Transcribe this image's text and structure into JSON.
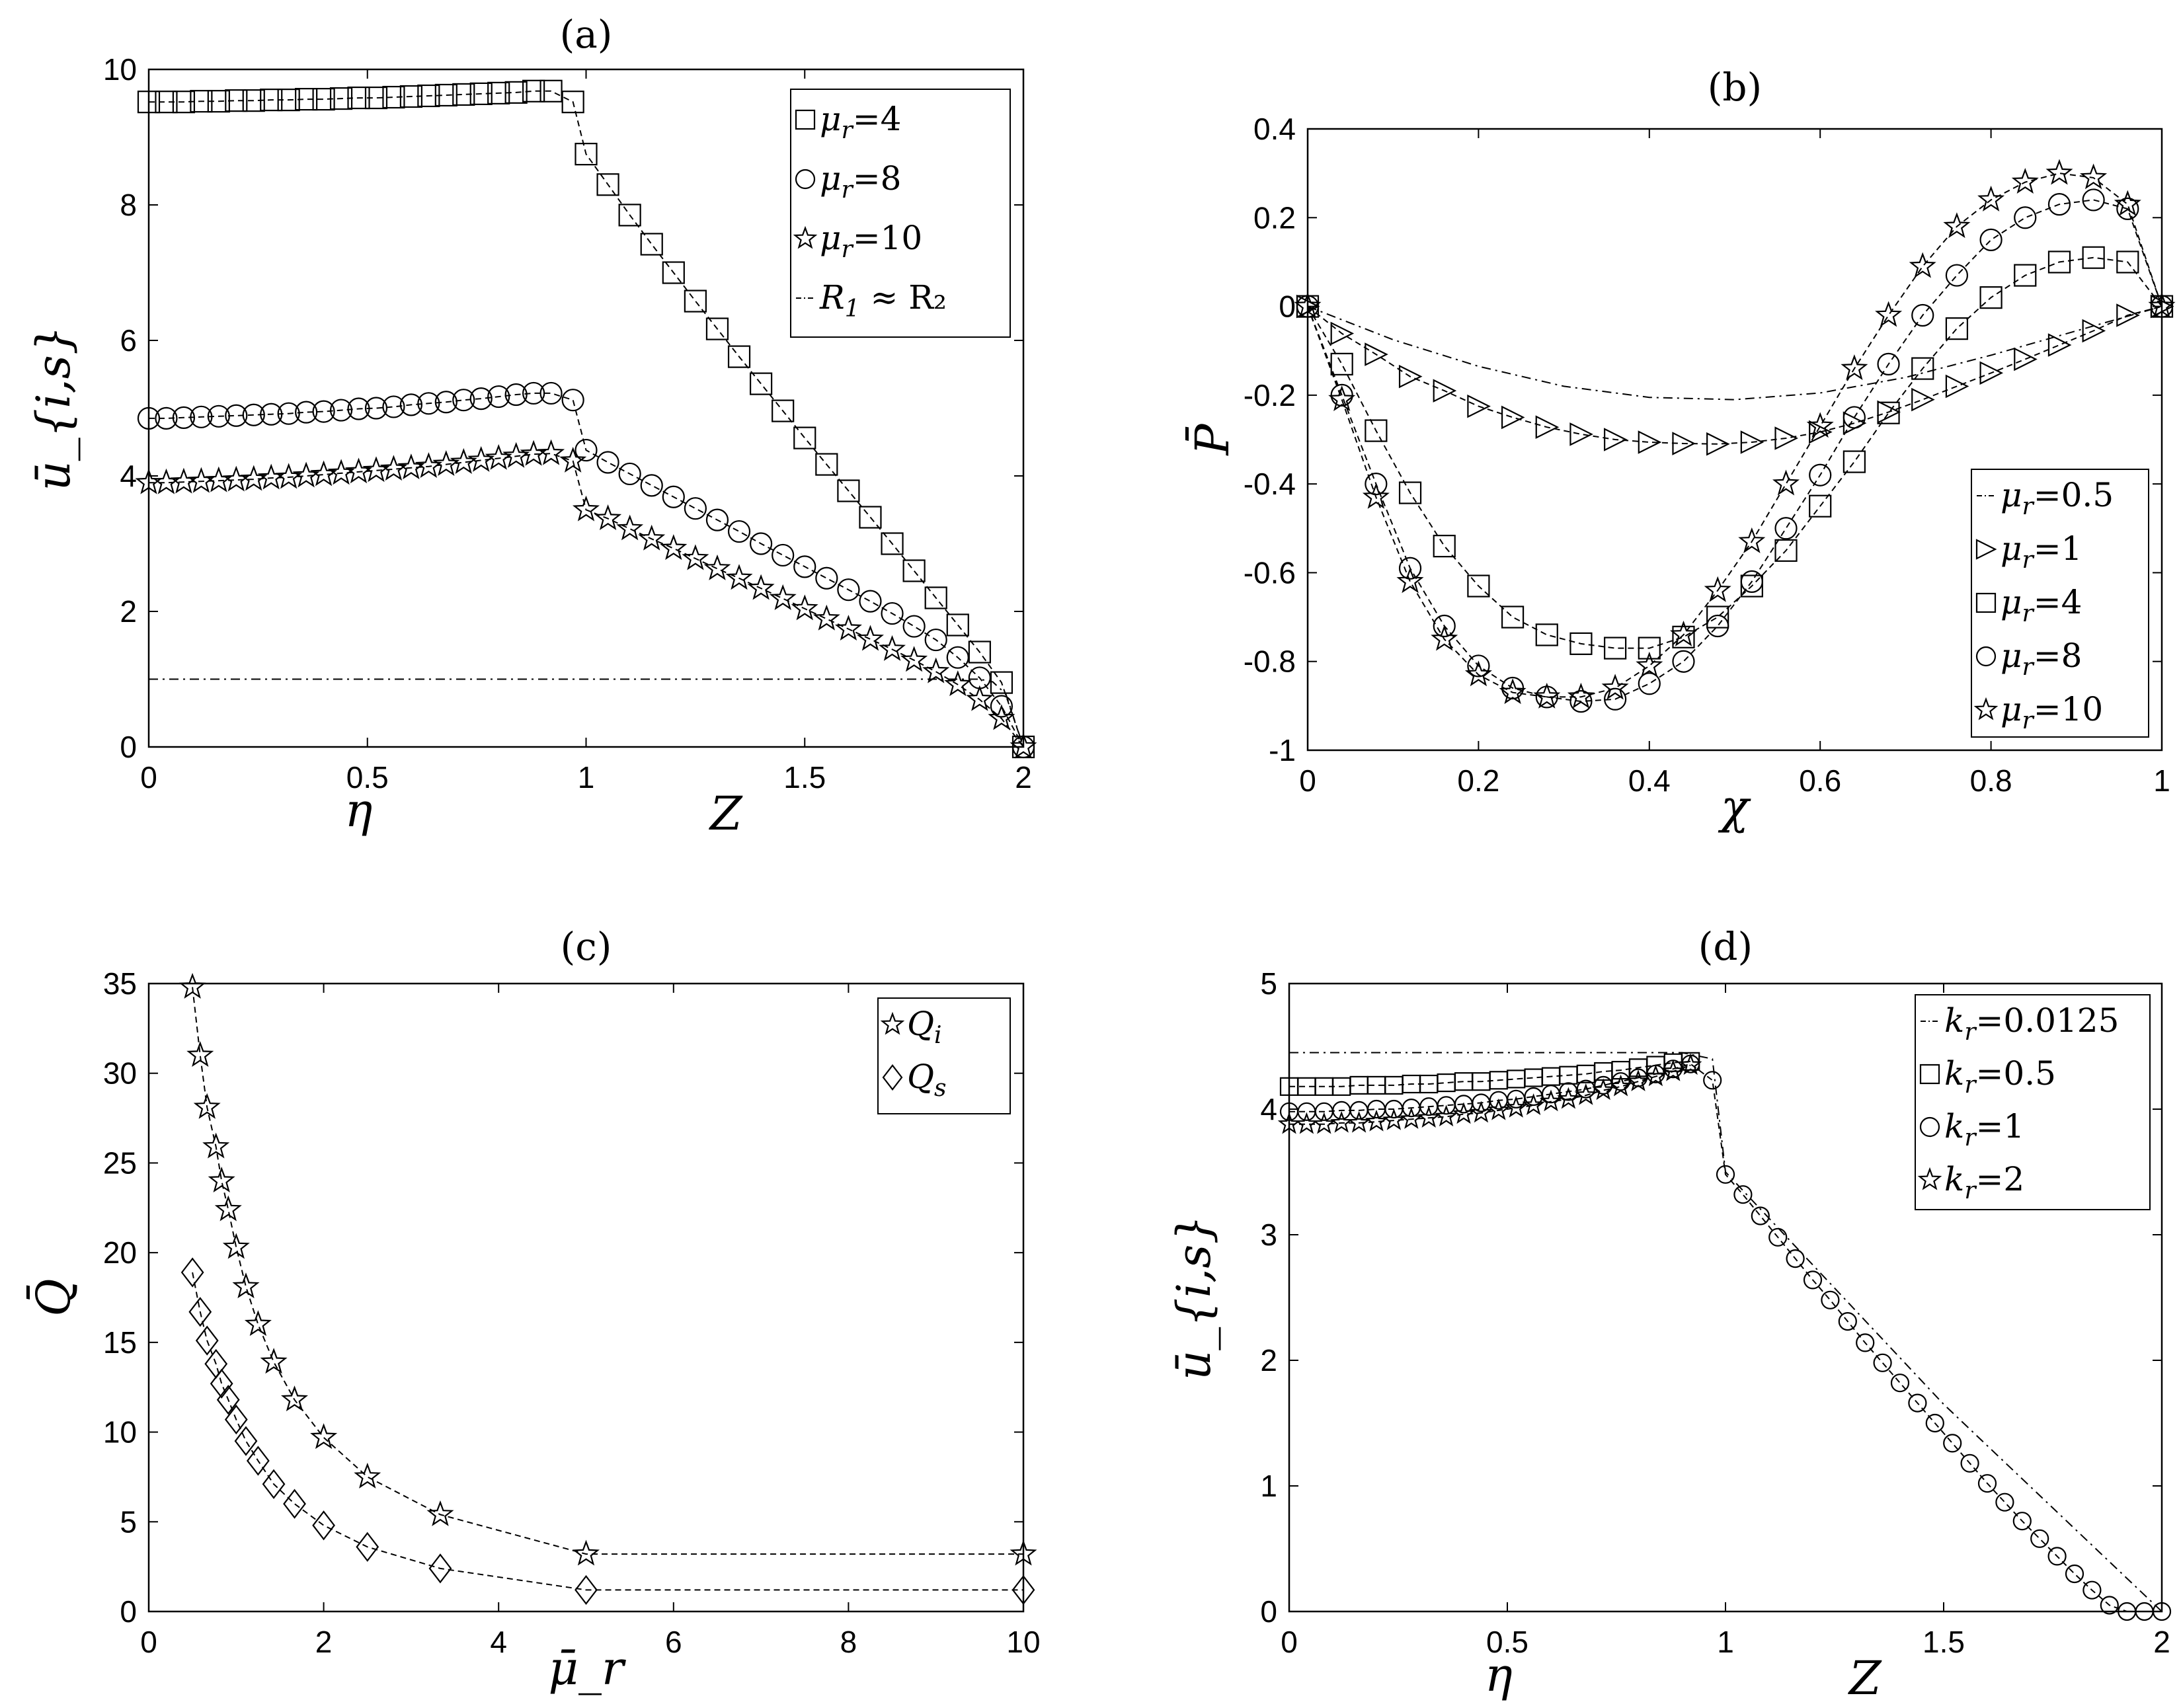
{
  "chart_data": [
    {
      "id": "a",
      "type": "line",
      "title": "(a)",
      "ylabel": "ū_{i,s}",
      "xlabel_parts": [
        "η",
        "Z"
      ],
      "xlim": [
        0,
        2
      ],
      "ylim": [
        0,
        10
      ],
      "xticks": [
        "0",
        "0.5",
        "1",
        "1.5",
        "2"
      ],
      "yticks": [
        "0",
        "2",
        "4",
        "6",
        "8",
        "10"
      ],
      "legend_position": "top-right",
      "series": [
        {
          "name": "μ_r=4",
          "legend_sym": "μ",
          "legend_sub": "r",
          "legend_val": "=4",
          "marker": "square",
          "x": [
            0,
            0.04,
            0.08,
            0.12,
            0.16,
            0.2,
            0.24,
            0.28,
            0.32,
            0.36,
            0.4,
            0.44,
            0.48,
            0.52,
            0.56,
            0.6,
            0.64,
            0.68,
            0.72,
            0.76,
            0.8,
            0.84,
            0.88,
            0.92,
            0.97,
            1.0,
            1.05,
            1.1,
            1.15,
            1.2,
            1.25,
            1.3,
            1.35,
            1.4,
            1.45,
            1.5,
            1.55,
            1.6,
            1.65,
            1.7,
            1.75,
            1.8,
            1.85,
            1.9,
            1.95,
            2.0
          ],
          "y": [
            9.52,
            9.52,
            9.52,
            9.53,
            9.53,
            9.54,
            9.54,
            9.55,
            9.55,
            9.56,
            9.56,
            9.57,
            9.58,
            9.58,
            9.59,
            9.6,
            9.61,
            9.62,
            9.63,
            9.64,
            9.65,
            9.66,
            9.68,
            9.68,
            9.52,
            8.75,
            8.3,
            7.85,
            7.42,
            7.0,
            6.58,
            6.17,
            5.76,
            5.36,
            4.96,
            4.56,
            4.17,
            3.78,
            3.39,
            3.0,
            2.6,
            2.2,
            1.8,
            1.4,
            0.95,
            0.0
          ]
        },
        {
          "name": "μ_r=8",
          "legend_sym": "μ",
          "legend_sub": "r",
          "legend_val": "=8",
          "marker": "circle",
          "x": [
            0,
            0.04,
            0.08,
            0.12,
            0.16,
            0.2,
            0.24,
            0.28,
            0.32,
            0.36,
            0.4,
            0.44,
            0.48,
            0.52,
            0.56,
            0.6,
            0.64,
            0.68,
            0.72,
            0.76,
            0.8,
            0.84,
            0.88,
            0.92,
            0.97,
            1.0,
            1.05,
            1.1,
            1.15,
            1.2,
            1.25,
            1.3,
            1.35,
            1.4,
            1.45,
            1.5,
            1.55,
            1.6,
            1.65,
            1.7,
            1.75,
            1.8,
            1.85,
            1.9,
            1.95,
            2.0
          ],
          "y": [
            4.85,
            4.85,
            4.86,
            4.87,
            4.88,
            4.89,
            4.9,
            4.91,
            4.92,
            4.94,
            4.95,
            4.97,
            4.99,
            5.0,
            5.02,
            5.05,
            5.07,
            5.09,
            5.12,
            5.14,
            5.17,
            5.2,
            5.22,
            5.22,
            5.12,
            4.38,
            4.2,
            4.03,
            3.86,
            3.69,
            3.52,
            3.35,
            3.18,
            3.0,
            2.83,
            2.66,
            2.49,
            2.32,
            2.15,
            1.97,
            1.78,
            1.58,
            1.32,
            1.02,
            0.6,
            0.0
          ]
        },
        {
          "name": "μ_r=10",
          "legend_sym": "μ",
          "legend_sub": "r",
          "legend_val": "=10",
          "marker": "star",
          "x": [
            0,
            0.04,
            0.08,
            0.12,
            0.16,
            0.2,
            0.24,
            0.28,
            0.32,
            0.36,
            0.4,
            0.44,
            0.48,
            0.52,
            0.56,
            0.6,
            0.64,
            0.68,
            0.72,
            0.76,
            0.8,
            0.84,
            0.88,
            0.92,
            0.97,
            1.0,
            1.05,
            1.1,
            1.15,
            1.2,
            1.25,
            1.3,
            1.35,
            1.4,
            1.45,
            1.5,
            1.55,
            1.6,
            1.65,
            1.7,
            1.75,
            1.8,
            1.85,
            1.9,
            1.95,
            2.0
          ],
          "y": [
            3.9,
            3.9,
            3.91,
            3.92,
            3.93,
            3.94,
            3.95,
            3.97,
            3.98,
            4.0,
            4.02,
            4.04,
            4.06,
            4.08,
            4.1,
            4.12,
            4.14,
            4.17,
            4.2,
            4.23,
            4.26,
            4.29,
            4.32,
            4.33,
            4.22,
            3.5,
            3.37,
            3.22,
            3.07,
            2.93,
            2.78,
            2.63,
            2.49,
            2.34,
            2.19,
            2.04,
            1.89,
            1.74,
            1.59,
            1.44,
            1.28,
            1.11,
            0.92,
            0.7,
            0.42,
            0.0
          ]
        },
        {
          "name": "R_1 ≈ R_2",
          "legend_sym": "R",
          "legend_sub": "1",
          "legend_val": " ≈ R₂",
          "marker": "dashdot",
          "x": [
            0,
            0.5,
            1.0,
            1.5,
            1.9,
            1.93,
            1.96,
            2.0
          ],
          "y": [
            1.0,
            1.0,
            1.0,
            1.0,
            1.0,
            0.96,
            0.78,
            0.0
          ]
        }
      ]
    },
    {
      "id": "b",
      "type": "line",
      "title": "(b)",
      "ylabel": "P̄",
      "xlabel": "χ",
      "xlim": [
        0,
        1
      ],
      "ylim": [
        -1,
        0.4
      ],
      "xticks": [
        "0",
        "0.2",
        "0.4",
        "0.6",
        "0.8",
        "1"
      ],
      "yticks": [
        "-1",
        "-0.8",
        "-0.6",
        "-0.4",
        "-0.2",
        "0",
        "0.2",
        "0.4"
      ],
      "legend_position": "bottom-right",
      "series": [
        {
          "name": "μ_r=0.5",
          "legend_sym": "μ",
          "legend_sub": "r",
          "legend_val": "=0.5",
          "marker": "dashdot",
          "x": [
            0,
            0.1,
            0.2,
            0.3,
            0.4,
            0.5,
            0.6,
            0.7,
            0.8,
            0.9,
            1.0
          ],
          "y": [
            0,
            -0.075,
            -0.135,
            -0.18,
            -0.205,
            -0.21,
            -0.195,
            -0.16,
            -0.11,
            -0.055,
            0
          ]
        },
        {
          "name": "μ_r=1",
          "legend_sym": "μ",
          "legend_sub": "r",
          "legend_val": "=1",
          "marker": "triangle",
          "x": [
            0,
            0.04,
            0.08,
            0.12,
            0.16,
            0.2,
            0.24,
            0.28,
            0.32,
            0.36,
            0.4,
            0.44,
            0.48,
            0.52,
            0.56,
            0.6,
            0.64,
            0.68,
            0.72,
            0.76,
            0.8,
            0.84,
            0.88,
            0.92,
            0.96,
            1.0
          ],
          "y": [
            0,
            -0.061,
            -0.108,
            -0.158,
            -0.19,
            -0.225,
            -0.25,
            -0.272,
            -0.288,
            -0.3,
            -0.306,
            -0.309,
            -0.31,
            -0.306,
            -0.297,
            -0.283,
            -0.263,
            -0.238,
            -0.21,
            -0.18,
            -0.15,
            -0.119,
            -0.087,
            -0.055,
            -0.02,
            0
          ]
        },
        {
          "name": "μ_r=4",
          "legend_sym": "μ",
          "legend_sub": "r",
          "legend_val": "=4",
          "marker": "square",
          "x": [
            0,
            0.04,
            0.08,
            0.12,
            0.16,
            0.2,
            0.24,
            0.28,
            0.32,
            0.36,
            0.4,
            0.44,
            0.48,
            0.52,
            0.56,
            0.6,
            0.64,
            0.68,
            0.72,
            0.76,
            0.8,
            0.84,
            0.88,
            0.92,
            0.96,
            1.0
          ],
          "y": [
            0,
            -0.13,
            -0.28,
            -0.42,
            -0.54,
            -0.63,
            -0.7,
            -0.74,
            -0.76,
            -0.77,
            -0.77,
            -0.745,
            -0.7,
            -0.63,
            -0.55,
            -0.45,
            -0.35,
            -0.24,
            -0.14,
            -0.05,
            0.02,
            0.07,
            0.1,
            0.11,
            0.1,
            0
          ]
        },
        {
          "name": "μ_r=8",
          "legend_sym": "μ",
          "legend_sub": "r",
          "legend_val": "=8",
          "marker": "circle",
          "x": [
            0,
            0.04,
            0.08,
            0.12,
            0.16,
            0.2,
            0.24,
            0.28,
            0.32,
            0.36,
            0.4,
            0.44,
            0.48,
            0.52,
            0.56,
            0.6,
            0.64,
            0.68,
            0.72,
            0.76,
            0.8,
            0.84,
            0.88,
            0.92,
            0.96,
            1.0
          ],
          "y": [
            0,
            -0.2,
            -0.4,
            -0.59,
            -0.72,
            -0.81,
            -0.86,
            -0.88,
            -0.89,
            -0.885,
            -0.85,
            -0.8,
            -0.72,
            -0.62,
            -0.5,
            -0.38,
            -0.25,
            -0.13,
            -0.02,
            0.07,
            0.15,
            0.2,
            0.23,
            0.24,
            0.22,
            0
          ]
        },
        {
          "name": "μ_r=10",
          "legend_sym": "μ",
          "legend_sub": "r",
          "legend_val": "=10",
          "marker": "star",
          "x": [
            0,
            0.04,
            0.08,
            0.12,
            0.16,
            0.2,
            0.24,
            0.28,
            0.32,
            0.36,
            0.4,
            0.44,
            0.48,
            0.52,
            0.56,
            0.6,
            0.64,
            0.68,
            0.72,
            0.76,
            0.8,
            0.84,
            0.88,
            0.92,
            0.96,
            1.0
          ],
          "y": [
            0,
            -0.21,
            -0.43,
            -0.62,
            -0.75,
            -0.83,
            -0.87,
            -0.88,
            -0.88,
            -0.86,
            -0.81,
            -0.74,
            -0.64,
            -0.53,
            -0.4,
            -0.27,
            -0.14,
            -0.02,
            0.09,
            0.18,
            0.24,
            0.28,
            0.3,
            0.29,
            0.23,
            0
          ]
        }
      ]
    },
    {
      "id": "c",
      "type": "line",
      "title": "(c)",
      "ylabel": "Q̄",
      "xlabel": "μ̄_r",
      "xlim": [
        0,
        10
      ],
      "ylim": [
        0,
        35
      ],
      "xticks": [
        "0",
        "2",
        "4",
        "6",
        "8",
        "10"
      ],
      "yticks": [
        "0",
        "5",
        "10",
        "15",
        "20",
        "25",
        "30",
        "35"
      ],
      "legend_position": "top-right",
      "series": [
        {
          "name": "Q̄_i",
          "legend_sym": "Q",
          "legend_sub": "i",
          "legend_val": "",
          "marker": "star",
          "x": [
            0.5,
            0.588,
            0.667,
            0.769,
            0.833,
            0.909,
            1.0,
            1.111,
            1.25,
            1.429,
            1.667,
            2.0,
            2.5,
            3.333,
            5.0,
            10.0
          ],
          "y": [
            34.8,
            31.0,
            28.1,
            25.9,
            24.0,
            22.4,
            20.3,
            18.1,
            16.0,
            13.9,
            11.8,
            9.7,
            7.5,
            5.4,
            3.2,
            3.2
          ]
        },
        {
          "name": "Q̄_s",
          "legend_sym": "Q",
          "legend_sub": "s",
          "legend_val": "",
          "marker": "diamond",
          "x": [
            0.5,
            0.588,
            0.667,
            0.769,
            0.833,
            0.909,
            1.0,
            1.111,
            1.25,
            1.429,
            1.667,
            2.0,
            2.5,
            3.333,
            5.0,
            10.0
          ],
          "y": [
            18.9,
            16.7,
            15.1,
            13.8,
            12.7,
            11.8,
            10.7,
            9.5,
            8.4,
            7.1,
            6.0,
            4.8,
            3.6,
            2.4,
            1.2,
            1.2
          ]
        }
      ]
    },
    {
      "id": "d",
      "type": "line",
      "title": "(d)",
      "ylabel": "ū_{i,s}",
      "xlabel_parts": [
        "η",
        "Z"
      ],
      "xlim": [
        0,
        2
      ],
      "ylim": [
        0,
        5
      ],
      "xticks": [
        "0",
        "0.5",
        "1",
        "1.5",
        "2"
      ],
      "yticks": [
        "0",
        "1",
        "2",
        "3",
        "4",
        "5"
      ],
      "legend_position": "top-right",
      "series": [
        {
          "name": "k_r=0.0125",
          "legend_sym": "k",
          "legend_sub": "r",
          "legend_val": "=0.0125",
          "marker": "dashdot",
          "x": [
            0,
            0.5,
            0.9,
            0.97,
            1.0,
            1.5,
            2.0
          ],
          "y": [
            4.45,
            4.45,
            4.45,
            4.4,
            3.5,
            1.65,
            0.0
          ]
        },
        {
          "name": "k_r=0.5",
          "legend_sym": "k",
          "legend_sub": "r",
          "legend_val": "=0.5",
          "marker": "square",
          "x": [
            0,
            0.04,
            0.08,
            0.12,
            0.16,
            0.2,
            0.24,
            0.28,
            0.32,
            0.36,
            0.4,
            0.44,
            0.48,
            0.52,
            0.56,
            0.6,
            0.64,
            0.68,
            0.72,
            0.76,
            0.8,
            0.84,
            0.88,
            0.92
          ],
          "y": [
            4.18,
            4.18,
            4.18,
            4.18,
            4.19,
            4.19,
            4.19,
            4.2,
            4.2,
            4.21,
            4.22,
            4.22,
            4.23,
            4.24,
            4.25,
            4.26,
            4.27,
            4.28,
            4.3,
            4.31,
            4.33,
            4.35,
            4.37,
            4.38
          ]
        },
        {
          "name": "k_r=1",
          "legend_sym": "k",
          "legend_sub": "r",
          "legend_val": "=1",
          "marker": "circle",
          "x": [
            0,
            0.04,
            0.08,
            0.12,
            0.16,
            0.2,
            0.24,
            0.28,
            0.32,
            0.36,
            0.4,
            0.44,
            0.48,
            0.52,
            0.56,
            0.6,
            0.64,
            0.68,
            0.72,
            0.76,
            0.8,
            0.84,
            0.88,
            0.92,
            0.97,
            1.0,
            1.04,
            1.08,
            1.12,
            1.16,
            1.2,
            1.24,
            1.28,
            1.32,
            1.36,
            1.4,
            1.44,
            1.48,
            1.52,
            1.56,
            1.6,
            1.64,
            1.68,
            1.72,
            1.76,
            1.8,
            1.84,
            1.88,
            1.92,
            1.96,
            2.0
          ],
          "y": [
            3.98,
            3.98,
            3.98,
            3.99,
            3.99,
            4.0,
            4.0,
            4.01,
            4.02,
            4.03,
            4.04,
            4.05,
            4.07,
            4.08,
            4.1,
            4.12,
            4.14,
            4.16,
            4.19,
            4.22,
            4.25,
            4.28,
            4.32,
            4.36,
            4.23,
            3.48,
            3.32,
            3.15,
            2.98,
            2.81,
            2.64,
            2.48,
            2.31,
            2.14,
            1.98,
            1.82,
            1.66,
            1.5,
            1.34,
            1.18,
            1.02,
            0.87,
            0.72,
            0.58,
            0.44,
            0.3,
            0.17,
            0.05,
            0.0,
            0.0,
            0.0
          ]
        },
        {
          "name": "k_r=2",
          "legend_sym": "k",
          "legend_sub": "r",
          "legend_val": "=2",
          "marker": "star",
          "x": [
            0,
            0.04,
            0.08,
            0.12,
            0.16,
            0.2,
            0.24,
            0.28,
            0.32,
            0.36,
            0.4,
            0.44,
            0.48,
            0.52,
            0.56,
            0.6,
            0.64,
            0.68,
            0.72,
            0.76,
            0.8,
            0.84,
            0.88,
            0.92
          ],
          "y": [
            3.88,
            3.88,
            3.88,
            3.89,
            3.89,
            3.9,
            3.91,
            3.92,
            3.93,
            3.94,
            3.96,
            3.97,
            3.99,
            4.01,
            4.03,
            4.06,
            4.08,
            4.11,
            4.15,
            4.18,
            4.22,
            4.26,
            4.3,
            4.35
          ]
        }
      ]
    }
  ]
}
